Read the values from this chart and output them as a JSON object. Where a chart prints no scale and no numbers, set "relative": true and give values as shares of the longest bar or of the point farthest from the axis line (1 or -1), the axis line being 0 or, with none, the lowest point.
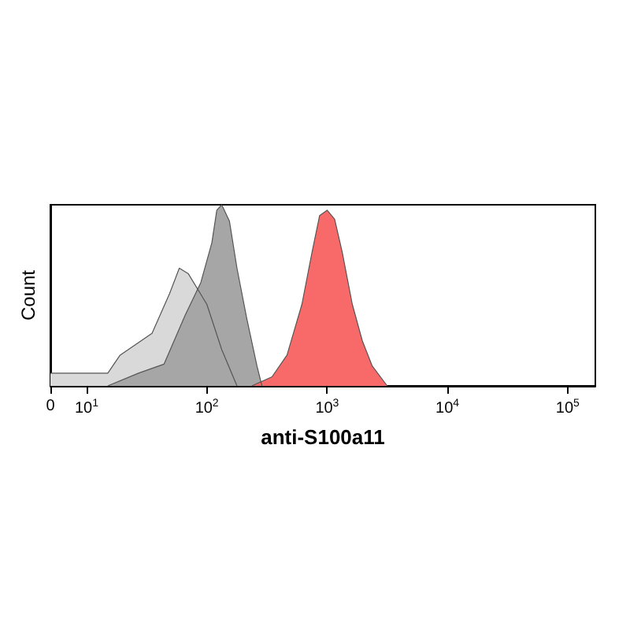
{
  "chart_data": {
    "type": "area",
    "xlabel": "anti-S100a11",
    "ylabel": "Count",
    "relative": true,
    "grid": false,
    "log": "x",
    "xlim": [
      0,
      170000
    ],
    "xticks": [
      0,
      {
        "value": 10,
        "label": "10$^{1}$"
      },
      {
        "value": 100,
        "label": "10$^{2}$"
      },
      {
        "value": 1000,
        "label": "10$^{3}$"
      },
      {
        "value": 10000,
        "label": "10$^{4}$"
      },
      {
        "value": 100000,
        "label": "10$^{5}$"
      }
    ],
    "series": [
      {
        "color": "#d9d9d9",
        "x": [
          5,
          8,
          15,
          19,
          35,
          49,
          59,
          70,
          100,
          133,
          178
        ],
        "values": [
          0.07,
          0.07,
          0.07,
          0.17,
          0.29,
          0.51,
          0.65,
          0.62,
          0.45,
          0.2,
          0
        ]
      },
      {
        "color": "#a6a6a6",
        "x": [
          15,
          27,
          44,
          66,
          89,
          110,
          121,
          133,
          154,
          178,
          215,
          261,
          287
        ],
        "values": [
          0,
          0.07,
          0.12,
          0.39,
          0.57,
          0.79,
          0.97,
          1,
          0.91,
          0.65,
          0.37,
          0.11,
          0
        ]
      },
      {
        "color": "#f86a6a",
        "x": [
          237,
          348,
          464,
          617,
          750,
          866,
          1000,
          1155,
          1334,
          1620,
          1960,
          2370,
          3160
        ],
        "values": [
          0,
          0.05,
          0.17,
          0.45,
          0.74,
          0.94,
          0.97,
          0.92,
          0.74,
          0.45,
          0.25,
          0.11,
          0
        ]
      }
    ]
  }
}
